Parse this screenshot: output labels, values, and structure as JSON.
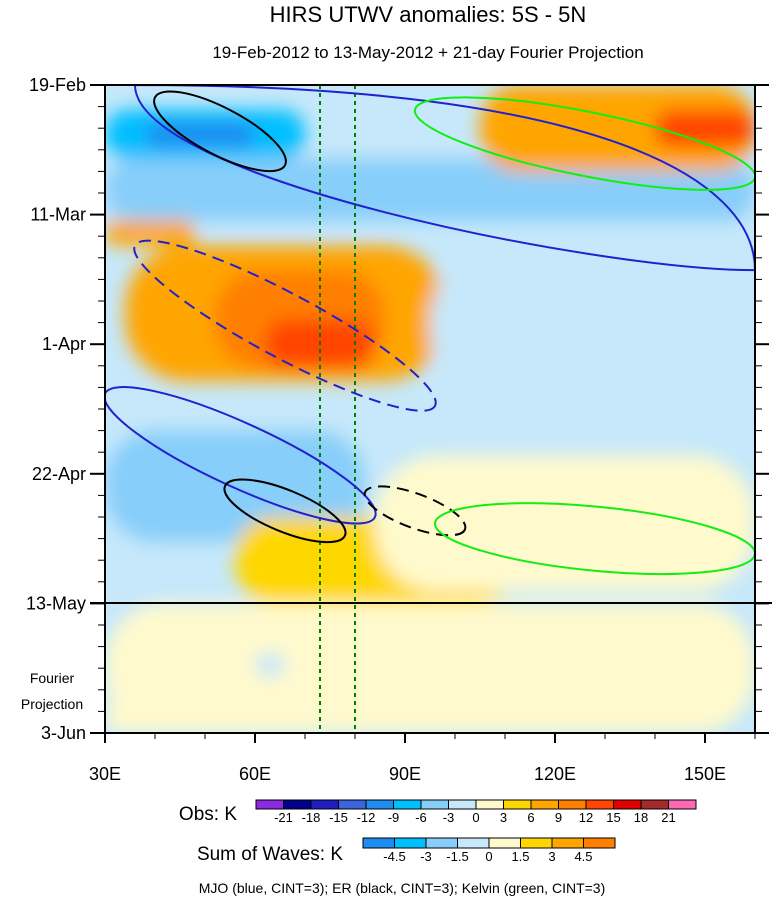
{
  "chart_data": {
    "type": "heatmap",
    "title": "HIRS UTWV anomalies: 5S - 5N",
    "subtitle": "19-Feb-2012 to 13-May-2012 + 21-day Fourier Projection",
    "xlabel": "",
    "ylabel": "",
    "x_range": [
      30,
      160
    ],
    "x_ticks": [
      {
        "value": 30,
        "label": "30E"
      },
      {
        "value": 60,
        "label": "60E"
      },
      {
        "value": 90,
        "label": "90E"
      },
      {
        "value": 120,
        "label": "120E"
      },
      {
        "value": 150,
        "label": "150E"
      }
    ],
    "y_range_days": [
      0,
      105
    ],
    "y_ticks": [
      {
        "day": 0,
        "label": "19-Feb"
      },
      {
        "day": 21,
        "label": "11-Mar"
      },
      {
        "day": 42,
        "label": "1-Apr"
      },
      {
        "day": 63,
        "label": "22-Apr"
      },
      {
        "day": 84,
        "label": "13-May"
      },
      {
        "day": 105,
        "label": "3-Jun"
      }
    ],
    "projection_label_line1": "Fourier",
    "projection_label_line2": "Projection",
    "projection_start_day": 84,
    "reference_lines_lon": [
      73,
      80
    ],
    "obs_colorbar": {
      "label": "Obs: K",
      "levels": [
        "-21",
        "-18",
        "-15",
        "-12",
        "-9",
        "-6",
        "-3",
        "0",
        "3",
        "6",
        "9",
        "12",
        "15",
        "18",
        "21"
      ],
      "colors": [
        "#8a2be2",
        "#00008b",
        "#1e1ebe",
        "#3c64dc",
        "#1e8cf0",
        "#00bfff",
        "#87cefa",
        "#c6e8fa",
        "#fffacd",
        "#ffd700",
        "#ffa500",
        "#ff7f00",
        "#ff4500",
        "#e00000",
        "#a52a2a",
        "#ff69b4"
      ]
    },
    "waves_colorbar": {
      "label": "Sum of Waves: K",
      "levels": [
        "-4.5",
        "-3",
        "-1.5",
        "0",
        "1.5",
        "3",
        "4.5"
      ],
      "colors": [
        "#1e8cf0",
        "#00bfff",
        "#87cefa",
        "#c6e8fa",
        "#fffacd",
        "#ffd700",
        "#ffa500",
        "#ff7f00"
      ]
    },
    "field_regions": [
      {
        "lon": [
          30,
          70
        ],
        "day": [
          4,
          12
        ],
        "value": -9
      },
      {
        "lon": [
          38,
          60
        ],
        "day": [
          6,
          10
        ],
        "value": -12
      },
      {
        "lon": [
          30,
          160
        ],
        "day": [
          12,
          22
        ],
        "value": -4
      },
      {
        "lon": [
          30,
          48
        ],
        "day": [
          22,
          26
        ],
        "value": 7
      },
      {
        "lon": [
          34,
          98
        ],
        "day": [
          26,
          48
        ],
        "value": 6
      },
      {
        "lon": [
          52,
          86
        ],
        "day": [
          30,
          46
        ],
        "value": 10
      },
      {
        "lon": [
          62,
          84
        ],
        "day": [
          38,
          46
        ],
        "value": 14
      },
      {
        "lon": [
          95,
          160
        ],
        "day": [
          28,
          50
        ],
        "value": -2
      },
      {
        "lon": [
          105,
          160
        ],
        "day": [
          0,
          14
        ],
        "value": 6
      },
      {
        "lon": [
          140,
          160
        ],
        "day": [
          4,
          10
        ],
        "value": 12
      },
      {
        "lon": [
          30,
          82
        ],
        "day": [
          56,
          74
        ],
        "value": -5
      },
      {
        "lon": [
          56,
          112
        ],
        "day": [
          70,
          84
        ],
        "value": 5
      },
      {
        "lon": [
          84,
          160
        ],
        "day": [
          60,
          82
        ],
        "value": 2
      },
      {
        "lon": [
          30,
          160
        ],
        "day": [
          84,
          105
        ],
        "value": 0.6
      },
      {
        "lon": [
          30,
          62
        ],
        "day": [
          100,
          105
        ],
        "value": 2
      },
      {
        "lon": [
          60,
          66
        ],
        "day": [
          92,
          96
        ],
        "value": -1.5
      }
    ],
    "contours": [
      {
        "wave": "MJO",
        "color": "blue",
        "sign": "positive",
        "lon": [
          36,
          128,
          160
        ],
        "day": [
          0,
          10,
          30
        ]
      },
      {
        "wave": "MJO",
        "color": "blue",
        "sign": "negative",
        "lon": [
          36,
          96
        ],
        "day": [
          26,
          52
        ]
      },
      {
        "wave": "MJO",
        "color": "blue",
        "sign": "positive",
        "lon": [
          30,
          84
        ],
        "day": [
          50,
          70
        ]
      },
      {
        "wave": "ER",
        "color": "black",
        "sign": "positive",
        "lon": [
          40,
          66
        ],
        "day": [
          2,
          13
        ]
      },
      {
        "wave": "ER",
        "color": "black",
        "sign": "positive",
        "lon": [
          54,
          78
        ],
        "day": [
          65,
          73
        ]
      },
      {
        "wave": "ER",
        "color": "black",
        "sign": "negative",
        "lon": [
          82,
          102
        ],
        "day": [
          66,
          72
        ]
      },
      {
        "wave": "Kelvin",
        "color": "green",
        "sign": "positive",
        "lon": [
          92,
          160
        ],
        "day": [
          4,
          15
        ]
      },
      {
        "wave": "Kelvin",
        "color": "green",
        "sign": "positive",
        "lon": [
          96,
          160
        ],
        "day": [
          71,
          76
        ]
      }
    ],
    "footnote": "MJO (blue, CINT=3); ER (black, CINT=3); Kelvin (green, CINT=3)"
  }
}
